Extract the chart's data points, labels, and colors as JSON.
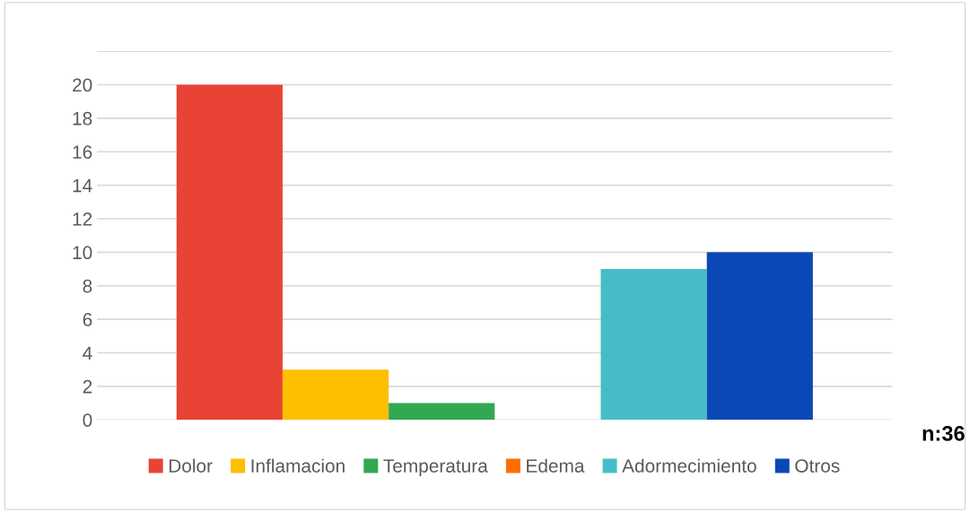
{
  "chart_data": {
    "type": "bar",
    "categories": [
      null
    ],
    "series": [
      {
        "name": "Dolor",
        "color": "#e94335",
        "values": [
          20
        ]
      },
      {
        "name": "Inflamacion",
        "color": "#fdbf00",
        "values": [
          3
        ]
      },
      {
        "name": "Temperatura",
        "color": "#33a852",
        "values": [
          1
        ]
      },
      {
        "name": "Edema",
        "color": "#ff6d01",
        "values": [
          0
        ]
      },
      {
        "name": "Adormecimiento",
        "color": "#46bdc6",
        "values": [
          9
        ]
      },
      {
        "name": "Otros",
        "color": "#0b48b7",
        "values": [
          10
        ]
      }
    ],
    "ylim": [
      0,
      22
    ],
    "yticks": [
      0,
      2,
      4,
      6,
      8,
      10,
      12,
      14,
      16,
      18,
      20,
      {
        "value": 22,
        "label": null
      }
    ],
    "grid": "y",
    "legend": "bottom",
    "tick_labels": "y",
    "annotations": [
      "n:36"
    ]
  }
}
